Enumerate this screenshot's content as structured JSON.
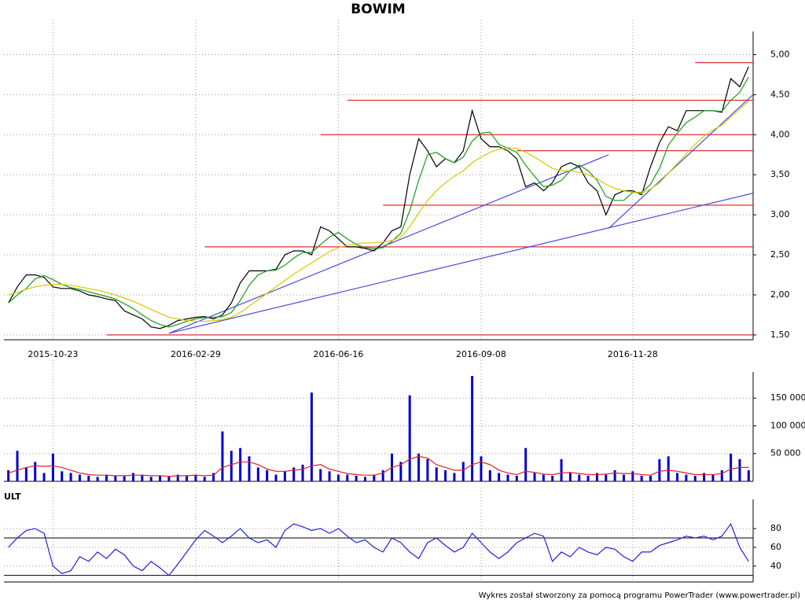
{
  "chart_data": [
    {
      "type": "line",
      "title": "BOWIM",
      "categories": [
        null,
        null,
        null,
        null,
        null,
        "2015-10-23",
        null,
        null,
        null,
        null,
        null,
        null,
        null,
        null,
        null,
        null,
        null,
        null,
        null,
        null,
        null,
        "2016-02-29",
        null,
        null,
        null,
        null,
        null,
        null,
        null,
        null,
        null,
        null,
        null,
        null,
        null,
        null,
        null,
        "2016-06-16",
        null,
        null,
        null,
        null,
        null,
        null,
        null,
        null,
        null,
        null,
        null,
        null,
        null,
        null,
        null,
        "2016-09-08",
        null,
        null,
        null,
        null,
        null,
        null,
        null,
        null,
        null,
        null,
        null,
        null,
        null,
        null,
        null,
        null,
        "2016-11-28",
        null,
        null,
        null,
        null,
        null,
        null,
        null,
        null,
        null,
        null,
        null,
        null,
        null
      ],
      "series": [
        {
          "color": "#000000",
          "values": [
            1.9,
            2.1,
            2.25,
            2.25,
            2.22,
            2.1,
            2.08,
            2.08,
            2.05,
            2.0,
            1.98,
            1.95,
            1.93,
            1.8,
            1.75,
            1.7,
            1.6,
            1.58,
            1.62,
            1.68,
            1.7,
            1.72,
            1.73,
            1.7,
            1.75,
            1.9,
            2.15,
            2.3,
            2.3,
            2.3,
            2.32,
            2.5,
            2.55,
            2.55,
            2.5,
            2.85,
            2.8,
            2.7,
            2.6,
            2.6,
            2.58,
            2.55,
            2.65,
            2.8,
            2.85,
            3.5,
            3.95,
            3.8,
            3.6,
            3.7,
            3.65,
            3.8,
            4.3,
            3.95,
            3.85,
            3.85,
            3.8,
            3.7,
            3.35,
            3.4,
            3.3,
            3.4,
            3.6,
            3.65,
            3.6,
            3.4,
            3.3,
            3.0,
            3.25,
            3.3,
            3.3,
            3.25,
            3.6,
            3.9,
            4.1,
            4.05,
            4.3,
            4.3,
            4.3,
            4.3,
            4.28,
            4.7,
            4.6,
            4.85
          ]
        },
        {
          "color": "#1a9a1a",
          "values": [
            1.9,
            2.0,
            2.08,
            2.2,
            2.24,
            2.19,
            2.13,
            2.09,
            2.07,
            2.04,
            2.01,
            1.98,
            1.95,
            1.89,
            1.83,
            1.75,
            1.68,
            1.63,
            1.6,
            1.63,
            1.67,
            1.7,
            1.72,
            1.72,
            1.73,
            1.78,
            1.93,
            2.12,
            2.25,
            2.3,
            2.31,
            2.37,
            2.46,
            2.53,
            2.53,
            2.63,
            2.72,
            2.78,
            2.7,
            2.63,
            2.59,
            2.58,
            2.59,
            2.67,
            2.77,
            3.05,
            3.43,
            3.75,
            3.78,
            3.7,
            3.65,
            3.72,
            3.92,
            4.02,
            4.03,
            3.88,
            3.83,
            3.78,
            3.62,
            3.48,
            3.35,
            3.37,
            3.43,
            3.55,
            3.62,
            3.55,
            3.43,
            3.23,
            3.18,
            3.18,
            3.28,
            3.28,
            3.38,
            3.58,
            3.87,
            4.02,
            4.15,
            4.22,
            4.3,
            4.3,
            4.29,
            4.43,
            4.53,
            4.72
          ]
        },
        {
          "color": "#d8c800",
          "values": [
            2.0,
            2.03,
            2.07,
            2.1,
            2.12,
            2.13,
            2.13,
            2.12,
            2.1,
            2.08,
            2.06,
            2.03,
            2.0,
            1.96,
            1.92,
            1.87,
            1.82,
            1.77,
            1.72,
            1.7,
            1.68,
            1.67,
            1.67,
            1.68,
            1.69,
            1.72,
            1.78,
            1.86,
            1.94,
            2.02,
            2.1,
            2.18,
            2.26,
            2.33,
            2.4,
            2.47,
            2.54,
            2.59,
            2.62,
            2.64,
            2.65,
            2.65,
            2.66,
            2.68,
            2.72,
            2.85,
            3.02,
            3.18,
            3.3,
            3.4,
            3.48,
            3.55,
            3.65,
            3.72,
            3.78,
            3.82,
            3.84,
            3.83,
            3.78,
            3.72,
            3.65,
            3.58,
            3.55,
            3.55,
            3.53,
            3.5,
            3.45,
            3.38,
            3.33,
            3.3,
            3.28,
            3.27,
            3.32,
            3.4,
            3.52,
            3.64,
            3.76,
            3.88,
            3.98,
            4.06,
            4.12,
            4.22,
            4.32,
            4.42
          ]
        }
      ],
      "ylim": [
        1.44,
        5.24
      ],
      "yticks": [
        {
          "value": 1.5,
          "label": "1,50"
        },
        {
          "value": 2.0,
          "label": "2,00"
        },
        {
          "value": 2.5,
          "label": "2,50"
        },
        {
          "value": 3.0,
          "label": "3,00"
        },
        {
          "value": 3.5,
          "label": "3,50"
        },
        {
          "value": 4.0,
          "label": "4,00"
        },
        {
          "value": 4.5,
          "label": "4,50"
        },
        {
          "value": 5.0,
          "label": "5,00"
        }
      ],
      "grid": true,
      "hlines": [
        {
          "value": 1.5,
          "from": 11
        },
        {
          "value": 2.6,
          "from": 22
        },
        {
          "value": 3.12,
          "from": 42
        },
        {
          "value": 3.8,
          "from": 57
        },
        {
          "value": 4.0,
          "from": 35
        },
        {
          "value": 4.43,
          "from": 38
        },
        {
          "value": 4.9,
          "from": 77
        }
      ],
      "hline_color": "#e03030",
      "trendlines": [
        {
          "x": [
            18,
            67.3
          ],
          "y": [
            1.52,
            3.75
          ]
        },
        {
          "x": [
            18,
            83.5
          ],
          "y": [
            1.52,
            3.27
          ]
        },
        {
          "x": [
            67.3,
            83.5
          ],
          "y": [
            2.83,
            4.5
          ]
        }
      ],
      "trend_color": "#4a4ae0"
    },
    {
      "type": "bar",
      "series": [
        {
          "color": "#0000cc",
          "values": [
            20000,
            55000,
            25000,
            35000,
            15000,
            50000,
            18000,
            15000,
            12000,
            10000,
            8000,
            12000,
            10000,
            9000,
            15000,
            12000,
            8000,
            10000,
            9000,
            12000,
            10000,
            12000,
            8000,
            15000,
            90000,
            55000,
            60000,
            45000,
            25000,
            20000,
            12000,
            18000,
            25000,
            30000,
            160000,
            22000,
            18000,
            12000,
            12000,
            10000,
            8000,
            12000,
            20000,
            50000,
            35000,
            155000,
            50000,
            40000,
            25000,
            20000,
            15000,
            35000,
            190000,
            45000,
            20000,
            15000,
            12000,
            10000,
            60000,
            15000,
            12000,
            10000,
            40000,
            15000,
            12000,
            10000,
            15000,
            12000,
            20000,
            12000,
            18000,
            10000,
            10000,
            40000,
            45000,
            15000,
            12000,
            10000,
            15000,
            12000,
            20000,
            50000,
            40000,
            20000
          ]
        },
        {
          "type": "line",
          "color": "#e02020",
          "values": [
            15000,
            20000,
            25000,
            28000,
            27000,
            28000,
            25000,
            20000,
            15000,
            12000,
            11000,
            11000,
            10000,
            10000,
            11000,
            11000,
            10000,
            10000,
            9000,
            10000,
            10000,
            11000,
            10000,
            11000,
            25000,
            30000,
            35000,
            35000,
            30000,
            22000,
            18000,
            18000,
            20000,
            22000,
            28000,
            30000,
            22000,
            18000,
            14000,
            12000,
            11000,
            11000,
            15000,
            25000,
            30000,
            40000,
            45000,
            42000,
            30000,
            25000,
            20000,
            20000,
            30000,
            35000,
            30000,
            20000,
            15000,
            12000,
            18000,
            16000,
            13000,
            12000,
            15000,
            16000,
            14000,
            12000,
            12000,
            13000,
            15000,
            14000,
            14000,
            12000,
            11000,
            18000,
            20000,
            18000,
            15000,
            12000,
            12000,
            12000,
            14000,
            22000,
            25000,
            25000
          ]
        }
      ],
      "ylim": [
        0,
        190000
      ],
      "yticks": [
        {
          "value": 50000,
          "label": "50 000"
        },
        {
          "value": 100000,
          "label": "100 000"
        },
        {
          "value": 150000,
          "label": "150 000"
        }
      ],
      "grid": true
    },
    {
      "type": "line",
      "title": "ULT",
      "series": [
        {
          "color": "#2020dd",
          "values": [
            60,
            70,
            78,
            80,
            75,
            40,
            32,
            35,
            50,
            45,
            55,
            48,
            58,
            52,
            40,
            35,
            45,
            38,
            30,
            42,
            55,
            68,
            78,
            72,
            65,
            72,
            80,
            70,
            65,
            68,
            60,
            78,
            85,
            82,
            78,
            80,
            75,
            80,
            72,
            65,
            68,
            60,
            55,
            70,
            65,
            55,
            48,
            65,
            70,
            62,
            55,
            60,
            75,
            65,
            55,
            48,
            55,
            65,
            70,
            75,
            72,
            45,
            55,
            50,
            60,
            55,
            52,
            60,
            58,
            50,
            45,
            55,
            55,
            62,
            65,
            68,
            72,
            70,
            72,
            68,
            72,
            85,
            60,
            45
          ]
        }
      ],
      "ylim": [
        23,
        107
      ],
      "yticks": [
        40,
        60,
        80
      ],
      "levels": [
        30,
        70
      ],
      "grid": true
    }
  ],
  "footer": "Wykres został stworzony za pomocą programu PowerTrader (www.powertrader.pl)"
}
